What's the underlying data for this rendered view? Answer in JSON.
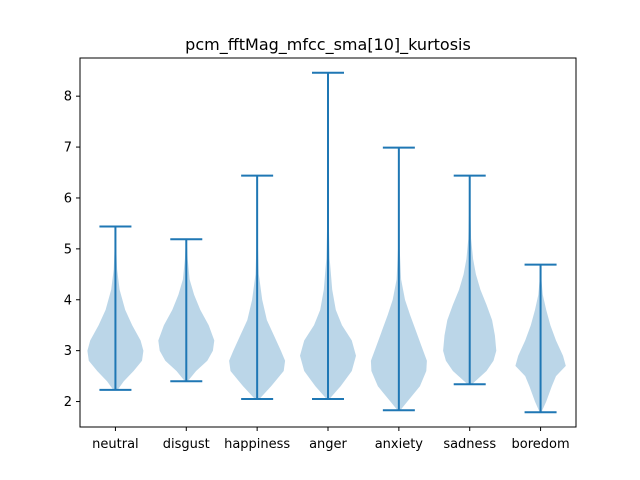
{
  "chart_data": {
    "type": "violin",
    "title": "pcm_fftMag_mfcc_sma[10]_kurtosis",
    "xlabel": "",
    "ylabel": "",
    "categories": [
      "neutral",
      "disgust",
      "happiness",
      "anger",
      "anxiety",
      "sadness",
      "boredom"
    ],
    "ylim": [
      1.5,
      8.75
    ],
    "yticks": [
      2,
      3,
      4,
      5,
      6,
      7,
      8
    ],
    "violin_color": "#1f77b4",
    "violins": [
      {
        "category": "neutral",
        "min": 2.23,
        "max": 5.44,
        "density": [
          [
            2.23,
            0.08
          ],
          [
            2.4,
            0.3
          ],
          [
            2.6,
            0.65
          ],
          [
            2.8,
            0.95
          ],
          [
            3.0,
            1.0
          ],
          [
            3.2,
            0.9
          ],
          [
            3.5,
            0.6
          ],
          [
            3.8,
            0.35
          ],
          [
            4.2,
            0.15
          ],
          [
            4.6,
            0.06
          ],
          [
            5.0,
            0.03
          ],
          [
            5.44,
            0.01
          ]
        ]
      },
      {
        "category": "disgust",
        "min": 2.4,
        "max": 5.19,
        "density": [
          [
            2.4,
            0.05
          ],
          [
            2.6,
            0.35
          ],
          [
            2.8,
            0.75
          ],
          [
            3.0,
            0.95
          ],
          [
            3.2,
            1.0
          ],
          [
            3.5,
            0.8
          ],
          [
            3.8,
            0.5
          ],
          [
            4.1,
            0.28
          ],
          [
            4.4,
            0.12
          ],
          [
            4.8,
            0.05
          ],
          [
            5.19,
            0.01
          ]
        ]
      },
      {
        "category": "happiness",
        "min": 2.05,
        "max": 6.44,
        "density": [
          [
            2.05,
            0.08
          ],
          [
            2.3,
            0.5
          ],
          [
            2.6,
            0.95
          ],
          [
            2.8,
            1.0
          ],
          [
            3.0,
            0.85
          ],
          [
            3.3,
            0.6
          ],
          [
            3.6,
            0.35
          ],
          [
            4.0,
            0.18
          ],
          [
            4.5,
            0.06
          ],
          [
            5.0,
            0.03
          ],
          [
            6.0,
            0.01
          ],
          [
            6.44,
            0.005
          ]
        ]
      },
      {
        "category": "anger",
        "min": 2.05,
        "max": 8.46,
        "density": [
          [
            2.05,
            0.05
          ],
          [
            2.3,
            0.45
          ],
          [
            2.6,
            0.85
          ],
          [
            2.9,
            1.0
          ],
          [
            3.2,
            0.85
          ],
          [
            3.5,
            0.5
          ],
          [
            3.8,
            0.28
          ],
          [
            4.2,
            0.15
          ],
          [
            4.8,
            0.06
          ],
          [
            5.5,
            0.03
          ],
          [
            7.0,
            0.01
          ],
          [
            8.46,
            0.005
          ]
        ]
      },
      {
        "category": "anxiety",
        "min": 1.83,
        "max": 6.99,
        "density": [
          [
            1.83,
            0.05
          ],
          [
            2.0,
            0.3
          ],
          [
            2.3,
            0.75
          ],
          [
            2.6,
            0.98
          ],
          [
            2.8,
            1.0
          ],
          [
            3.1,
            0.8
          ],
          [
            3.4,
            0.6
          ],
          [
            3.7,
            0.4
          ],
          [
            4.0,
            0.22
          ],
          [
            4.4,
            0.08
          ],
          [
            5.0,
            0.03
          ],
          [
            6.0,
            0.01
          ],
          [
            6.99,
            0.005
          ]
        ]
      },
      {
        "category": "sadness",
        "min": 2.34,
        "max": 6.44,
        "density": [
          [
            2.34,
            0.08
          ],
          [
            2.6,
            0.6
          ],
          [
            2.8,
            0.85
          ],
          [
            3.0,
            0.95
          ],
          [
            3.3,
            0.9
          ],
          [
            3.6,
            0.8
          ],
          [
            3.9,
            0.6
          ],
          [
            4.2,
            0.38
          ],
          [
            4.5,
            0.22
          ],
          [
            4.8,
            0.12
          ],
          [
            5.2,
            0.05
          ],
          [
            5.8,
            0.02
          ],
          [
            6.44,
            0.005
          ]
        ]
      },
      {
        "category": "boredom",
        "min": 1.79,
        "max": 4.69,
        "density": [
          [
            1.79,
            0.03
          ],
          [
            2.0,
            0.2
          ],
          [
            2.3,
            0.4
          ],
          [
            2.5,
            0.55
          ],
          [
            2.7,
            0.9
          ],
          [
            2.9,
            0.8
          ],
          [
            3.2,
            0.55
          ],
          [
            3.5,
            0.35
          ],
          [
            3.8,
            0.2
          ],
          [
            4.1,
            0.08
          ],
          [
            4.4,
            0.03
          ],
          [
            4.69,
            0.005
          ]
        ]
      }
    ]
  }
}
